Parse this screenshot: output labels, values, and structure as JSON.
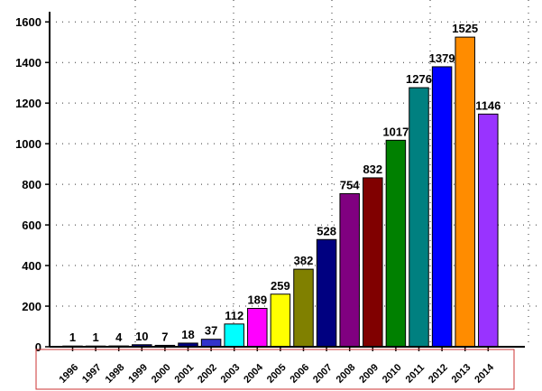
{
  "chart_data": {
    "type": "bar",
    "categories": [
      "1996",
      "1997",
      "1998",
      "1999",
      "2000",
      "2001",
      "2002",
      "2003",
      "2004",
      "2005",
      "2006",
      "2007",
      "2008",
      "2009",
      "2010",
      "2011",
      "2012",
      "2013",
      "2014"
    ],
    "values": [
      1,
      1,
      4,
      10,
      7,
      18,
      37,
      112,
      189,
      259,
      382,
      528,
      754,
      832,
      1017,
      1276,
      1379,
      1525,
      1146
    ],
    "data_labels": [
      "1",
      "1",
      "4",
      "10",
      "7",
      "18",
      "37",
      "112",
      "189",
      "259",
      "382",
      "528",
      "754",
      "832",
      "1017",
      "1276",
      "1379",
      "1525",
      "1146"
    ],
    "colors": [
      "#000080",
      "#000080",
      "#000080",
      "#000080",
      "#000080",
      "#000080",
      "#3333cc",
      "#00ffff",
      "#ff00ff",
      "#ffff00",
      "#808000",
      "#000080",
      "#800080",
      "#800000",
      "#008000",
      "#008080",
      "#0000ff",
      "#ff8c00",
      "#9933ff"
    ],
    "ylim": [
      0,
      1650
    ],
    "yticks": [
      0,
      200,
      400,
      600,
      800,
      1000,
      1200,
      1400,
      1600
    ],
    "ytick_labels": [
      "0",
      "200",
      "400",
      "600",
      "800",
      "1000",
      "1200",
      "1400",
      "1600"
    ],
    "grid": "dotted",
    "title": "",
    "xlabel": "",
    "ylabel": ""
  }
}
